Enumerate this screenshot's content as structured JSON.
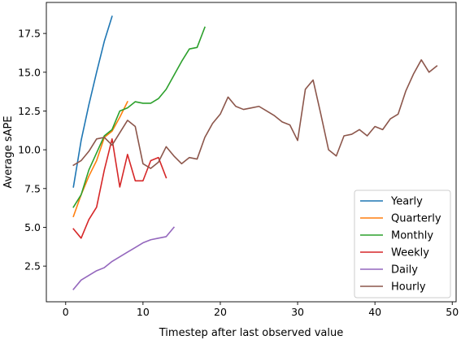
{
  "chart_data": {
    "type": "line",
    "title": "",
    "xlabel": "Timestep after last observed value",
    "ylabel": "Average sAPE",
    "xlim": [
      -2.5,
      50.5
    ],
    "ylim": [
      0.2,
      19.5
    ],
    "xticks": [
      0,
      10,
      20,
      30,
      40,
      50
    ],
    "xtick_labels": [
      "0",
      "10",
      "20",
      "30",
      "40",
      "50"
    ],
    "yticks": [
      2.5,
      5.0,
      7.5,
      10.0,
      12.5,
      15.0,
      17.5
    ],
    "ytick_labels": [
      "2.5",
      "5.0",
      "7.5",
      "10.0",
      "12.5",
      "15.0",
      "17.5"
    ],
    "grid": false,
    "legend_position": "lower-right",
    "series": [
      {
        "name": "Yearly",
        "color": "#1f77b4",
        "x": [
          1,
          2,
          3,
          4,
          5,
          6
        ],
        "values": [
          7.6,
          10.6,
          12.9,
          15.0,
          17.0,
          18.6
        ]
      },
      {
        "name": "Quarterly",
        "color": "#ff7f0e",
        "x": [
          1,
          2,
          3,
          4,
          5,
          6,
          7,
          8
        ],
        "values": [
          5.7,
          7.1,
          8.3,
          9.3,
          10.8,
          11.2,
          12.1,
          13.1
        ]
      },
      {
        "name": "Monthly",
        "color": "#2ca02c",
        "x": [
          1,
          2,
          3,
          4,
          5,
          6,
          7,
          8,
          9,
          10,
          11,
          12,
          13,
          14,
          15,
          16,
          17,
          18
        ],
        "values": [
          6.3,
          7.1,
          8.7,
          9.8,
          10.9,
          11.3,
          12.5,
          12.7,
          13.1,
          13.0,
          13.0,
          13.3,
          13.9,
          14.8,
          15.7,
          16.5,
          16.6,
          17.9
        ]
      },
      {
        "name": "Weekly",
        "color": "#d62728",
        "x": [
          1,
          2,
          3,
          4,
          5,
          6,
          7,
          8,
          9,
          10,
          11,
          12,
          13
        ],
        "values": [
          4.9,
          4.3,
          5.5,
          6.3,
          8.7,
          10.7,
          7.6,
          9.7,
          8.0,
          8.0,
          9.3,
          9.5,
          8.2
        ]
      },
      {
        "name": "Daily",
        "color": "#9467bd",
        "x": [
          1,
          2,
          3,
          4,
          5,
          6,
          7,
          8,
          9,
          10,
          11,
          12,
          13,
          14
        ],
        "values": [
          1.0,
          1.6,
          1.9,
          2.2,
          2.4,
          2.8,
          3.1,
          3.4,
          3.7,
          4.0,
          4.2,
          4.3,
          4.4,
          5.0
        ]
      },
      {
        "name": "Hourly",
        "color": "#8c564b",
        "x": [
          1,
          2,
          3,
          4,
          5,
          6,
          7,
          8,
          9,
          10,
          11,
          12,
          13,
          14,
          15,
          16,
          17,
          18,
          19,
          20,
          21,
          22,
          23,
          24,
          25,
          26,
          27,
          28,
          29,
          30,
          31,
          32,
          33,
          34,
          35,
          36,
          37,
          38,
          39,
          40,
          41,
          42,
          43,
          44,
          45,
          46,
          47,
          48
        ],
        "values": [
          9.0,
          9.3,
          9.9,
          10.7,
          10.8,
          10.3,
          11.1,
          11.9,
          11.5,
          9.1,
          8.8,
          9.2,
          10.2,
          9.6,
          9.1,
          9.5,
          9.4,
          10.8,
          11.7,
          12.3,
          13.4,
          12.8,
          12.6,
          12.7,
          12.8,
          12.5,
          12.2,
          11.8,
          11.6,
          10.6,
          13.9,
          14.5,
          12.3,
          10.0,
          9.6,
          10.9,
          11.0,
          11.3,
          10.9,
          11.5,
          11.3,
          12.0,
          12.3,
          13.8,
          14.9,
          15.8,
          15.0,
          15.4
        ]
      }
    ]
  }
}
